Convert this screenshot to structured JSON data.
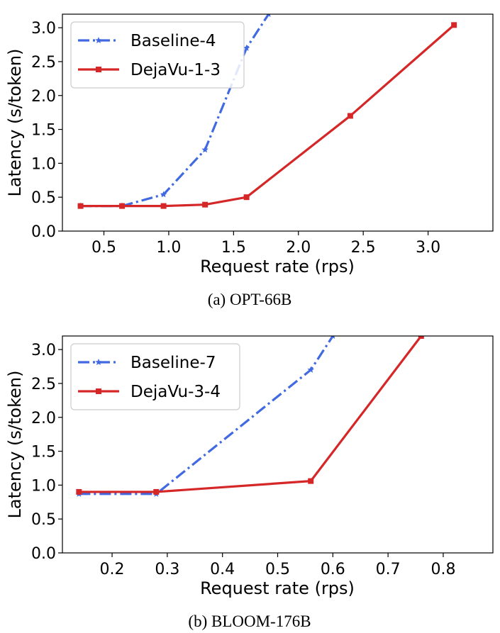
{
  "chart_data": [
    {
      "type": "line",
      "caption": "(a) OPT-66B",
      "xlabel": "Request rate (rps)",
      "ylabel": "Latency (s/token)",
      "xlim": [
        0.18,
        3.5
      ],
      "ylim": [
        0.0,
        3.2
      ],
      "xticks": [
        "0.5",
        "1.0",
        "1.5",
        "2.0",
        "2.5",
        "3.0"
      ],
      "yticks": [
        "0.0",
        "0.5",
        "1.0",
        "1.5",
        "2.0",
        "2.5",
        "3.0"
      ],
      "legend_position": "top-left",
      "grid": false,
      "series": [
        {
          "name": "Baseline-4",
          "color": "#4169e1",
          "style": "dash-dot",
          "marker": "star",
          "x": [
            0.32,
            0.64,
            0.96,
            1.28,
            1.6,
            1.77
          ],
          "y": [
            0.37,
            0.37,
            0.54,
            1.2,
            2.7,
            3.2
          ]
        },
        {
          "name": "DejaVu-1-3",
          "color": "#d62728",
          "style": "solid",
          "marker": "square",
          "x": [
            0.32,
            0.64,
            0.96,
            1.28,
            1.6,
            2.4,
            3.2
          ],
          "y": [
            0.37,
            0.37,
            0.37,
            0.39,
            0.5,
            1.7,
            3.04
          ]
        }
      ]
    },
    {
      "type": "line",
      "caption": "(b) BLOOM-176B",
      "xlabel": "Request rate (rps)",
      "ylabel": "Latency (s/token)",
      "xlim": [
        0.11,
        0.89
      ],
      "ylim": [
        0.0,
        3.2
      ],
      "xticks": [
        "0.2",
        "0.3",
        "0.4",
        "0.5",
        "0.6",
        "0.7",
        "0.8"
      ],
      "yticks": [
        "0.0",
        "0.5",
        "1.0",
        "1.5",
        "2.0",
        "2.5",
        "3.0"
      ],
      "legend_position": "top-left",
      "grid": false,
      "series": [
        {
          "name": "Baseline-7",
          "color": "#4169e1",
          "style": "dash-dot",
          "marker": "star",
          "x": [
            0.14,
            0.28,
            0.56,
            0.6
          ],
          "y": [
            0.87,
            0.87,
            2.7,
            3.2
          ]
        },
        {
          "name": "DejaVu-3-4",
          "color": "#d62728",
          "style": "solid",
          "marker": "square",
          "x": [
            0.14,
            0.28,
            0.56,
            0.76
          ],
          "y": [
            0.9,
            0.9,
            1.06,
            3.2
          ]
        }
      ]
    }
  ]
}
